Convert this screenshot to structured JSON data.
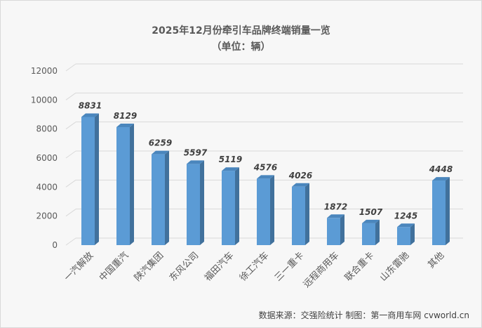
{
  "title": "2025年12月份牵引车品牌终端销量一览",
  "subtitle": "（单位：辆）",
  "source": "数据来源：交强险统计   制图：第一商用车网 cvworld.cn",
  "colors": {
    "bar_front": "#5b9bd5",
    "bar_side": "#41719c",
    "bar_top": "#4a86bd",
    "grid": "#d9d9d9",
    "text": "#595959"
  },
  "chart_data": {
    "type": "bar",
    "title": "2025年12月份牵引车品牌终端销量一览",
    "subtitle": "（单位：辆）",
    "xlabel": "",
    "ylabel": "",
    "categories": [
      "一汽解放",
      "中国重汽",
      "陕汽集团",
      "东风公司",
      "福田汽车",
      "徐工汽车",
      "三一重卡",
      "远程商用车",
      "联合重卡",
      "山东雷驰",
      "其他"
    ],
    "values": [
      8831,
      8129,
      6259,
      5597,
      5119,
      4576,
      4026,
      1872,
      1507,
      1245,
      4448
    ],
    "ylim": [
      0,
      12000
    ],
    "yticks": [
      0,
      2000,
      4000,
      6000,
      8000,
      10000,
      12000
    ],
    "grid": true,
    "legend": "none",
    "data_labels": true,
    "style": "3d-column"
  }
}
